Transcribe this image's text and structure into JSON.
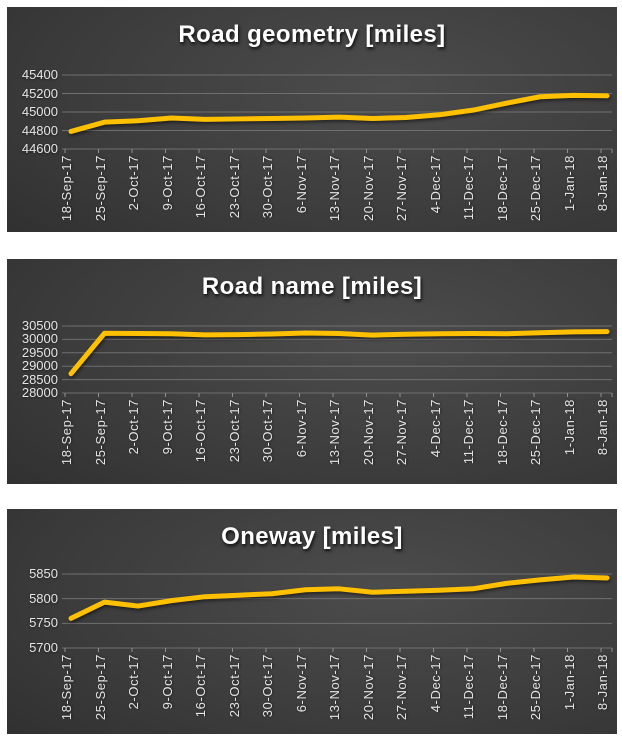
{
  "theme": {
    "panel_bg_light": "#4c4c4c",
    "panel_bg_dark": "#191919",
    "line_color": "#FFC000",
    "grid_color": "#6f6f6f",
    "tick_color": "#8f8f8f",
    "label_color": "#e5e5e5",
    "title_color": "#ffffff",
    "page_background": "#ffffff"
  },
  "chart_data": [
    {
      "type": "line",
      "title": "Road geometry [miles]",
      "xlabel": "",
      "ylabel": "",
      "grid": true,
      "legend": "none",
      "x_tick_rotation": 90,
      "line_color": "#FFC000",
      "ylim": [
        44600,
        45400
      ],
      "yticks": [
        45400,
        45200,
        45000,
        44800,
        44600
      ],
      "categories": [
        "18-Sep-17",
        "25-Sep-17",
        "2-Oct-17",
        "9-Oct-17",
        "16-Oct-17",
        "23-Oct-17",
        "30-Oct-17",
        "6-Nov-17",
        "13-Nov-17",
        "20-Nov-17",
        "27-Nov-17",
        "4-Dec-17",
        "11-Dec-17",
        "18-Dec-17",
        "25-Dec-17",
        "1-Jan-18",
        "8-Jan-18"
      ],
      "series": [
        {
          "values": [
            44790,
            44890,
            44905,
            44935,
            44920,
            44925,
            44930,
            44935,
            44945,
            44930,
            44940,
            44970,
            45020,
            45095,
            45165,
            45180,
            45175
          ]
        }
      ]
    },
    {
      "type": "line",
      "title": "Road name [miles]",
      "xlabel": "",
      "ylabel": "",
      "grid": true,
      "legend": "none",
      "x_tick_rotation": 90,
      "line_color": "#FFC000",
      "ylim": [
        28000,
        30500
      ],
      "yticks": [
        30500,
        30000,
        29500,
        29000,
        28500,
        28000
      ],
      "categories": [
        "18-Sep-17",
        "25-Sep-17",
        "2-Oct-17",
        "9-Oct-17",
        "16-Oct-17",
        "23-Oct-17",
        "30-Oct-17",
        "6-Nov-17",
        "13-Nov-17",
        "20-Nov-17",
        "27-Nov-17",
        "4-Dec-17",
        "11-Dec-17",
        "18-Dec-17",
        "25-Dec-17",
        "1-Jan-18",
        "8-Jan-18"
      ],
      "series": [
        {
          "values": [
            28720,
            30230,
            30220,
            30210,
            30170,
            30180,
            30200,
            30240,
            30220,
            30160,
            30190,
            30210,
            30220,
            30210,
            30250,
            30280,
            30290
          ]
        }
      ]
    },
    {
      "type": "line",
      "title": "Oneway [miles]",
      "xlabel": "",
      "ylabel": "",
      "grid": true,
      "legend": "none",
      "x_tick_rotation": 90,
      "line_color": "#FFC000",
      "ylim": [
        5700,
        5850
      ],
      "yticks": [
        5850,
        5800,
        5750,
        5700
      ],
      "categories": [
        "18-Sep-17",
        "25-Sep-17",
        "2-Oct-17",
        "9-Oct-17",
        "16-Oct-17",
        "23-Oct-17",
        "30-Oct-17",
        "6-Nov-17",
        "13-Nov-17",
        "20-Nov-17",
        "27-Nov-17",
        "4-Dec-17",
        "11-Dec-17",
        "18-Dec-17",
        "25-Dec-17",
        "1-Jan-18",
        "8-Jan-18"
      ],
      "series": [
        {
          "values": [
            5760,
            5793,
            5785,
            5796,
            5804,
            5807,
            5810,
            5818,
            5820,
            5813,
            5815,
            5817,
            5820,
            5831,
            5838,
            5844,
            5842
          ]
        }
      ]
    }
  ]
}
